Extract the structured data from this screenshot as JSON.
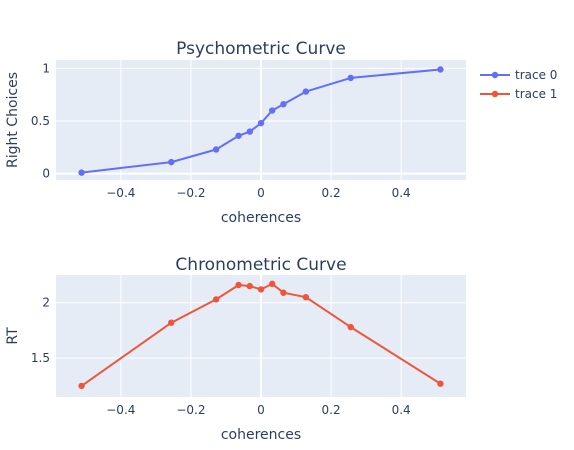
{
  "chart_data": [
    {
      "type": "line",
      "title": "Psychometric Curve",
      "xlabel": "coherences",
      "ylabel": "Right Choices",
      "xlim": [
        -0.585,
        0.585
      ],
      "ylim": [
        -0.06,
        1.08
      ],
      "xticks": [
        -0.4,
        -0.2,
        0,
        0.2,
        0.4
      ],
      "xtick_labels": [
        "−0.4",
        "−0.2",
        "0",
        "0.2",
        "0.4"
      ],
      "yticks": [
        0,
        0.5,
        1
      ],
      "ytick_labels": [
        "0",
        "0.5",
        "1"
      ],
      "grid": true,
      "series": [
        {
          "name": "trace 0",
          "color": "#636efa",
          "x": [
            -0.512,
            -0.256,
            -0.128,
            -0.064,
            -0.032,
            0.0,
            0.032,
            0.064,
            0.128,
            0.256,
            0.512
          ],
          "y": [
            0.01,
            0.11,
            0.23,
            0.36,
            0.4,
            0.48,
            0.6,
            0.66,
            0.78,
            0.91,
            0.99
          ]
        }
      ]
    },
    {
      "type": "line",
      "title": "Chronometric Curve",
      "xlabel": "coherences",
      "ylabel": "RT",
      "xlim": [
        -0.585,
        0.585
      ],
      "ylim": [
        1.15,
        2.25
      ],
      "xticks": [
        -0.4,
        -0.2,
        0,
        0.2,
        0.4
      ],
      "xtick_labels": [
        "−0.4",
        "−0.2",
        "0",
        "0.2",
        "0.4"
      ],
      "yticks": [
        1.5,
        2
      ],
      "ytick_labels": [
        "1.5",
        "2"
      ],
      "grid": true,
      "series": [
        {
          "name": "trace 1",
          "color": "#ef553b",
          "x": [
            -0.512,
            -0.256,
            -0.128,
            -0.064,
            -0.032,
            0.0,
            0.032,
            0.064,
            0.128,
            0.256,
            0.512
          ],
          "y": [
            1.25,
            1.82,
            2.03,
            2.16,
            2.15,
            2.12,
            2.17,
            2.09,
            2.05,
            1.78,
            1.27
          ]
        }
      ]
    }
  ],
  "legend": {
    "position": "top-right",
    "items": [
      {
        "label": "trace 0",
        "color": "#636efa"
      },
      {
        "label": "trace 1",
        "color": "#ef553b"
      }
    ]
  },
  "colors": {
    "plot_background": "#e5ecf6",
    "grid": "#ffffff",
    "text": "#2a3f5f"
  }
}
